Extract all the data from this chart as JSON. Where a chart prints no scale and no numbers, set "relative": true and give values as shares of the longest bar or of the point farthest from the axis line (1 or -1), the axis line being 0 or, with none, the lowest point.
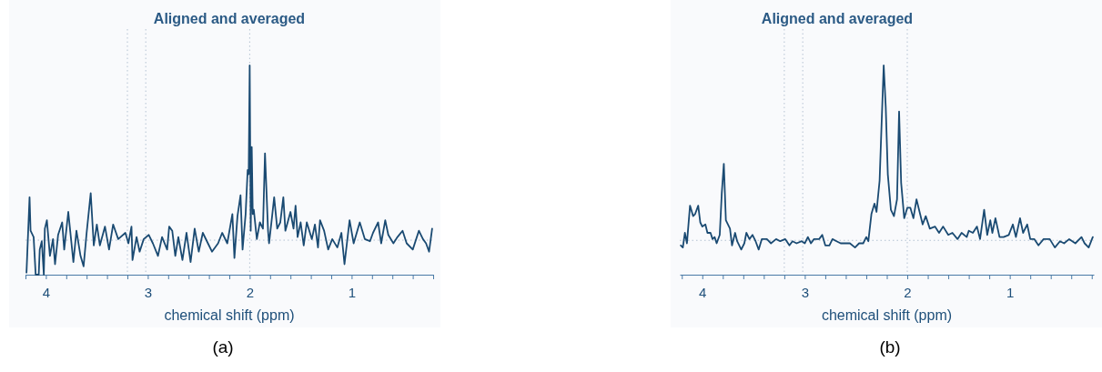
{
  "chart_data": [
    {
      "type": "line",
      "title": "Aligned and averaged",
      "xlabel": "chemical shift (ppm)",
      "relative": true,
      "xlim": [
        4.2,
        0.2
      ],
      "xticks": [
        {
          "value": 4.2,
          "label": null
        },
        4,
        {
          "value": 3.8,
          "label": null
        },
        {
          "value": 3.6,
          "label": null
        },
        {
          "value": 3.4,
          "label": null
        },
        {
          "value": 3.2,
          "label": null
        },
        3,
        {
          "value": 2.8,
          "label": null
        },
        {
          "value": 2.6,
          "label": null
        },
        {
          "value": 2.4,
          "label": null
        },
        {
          "value": 2.2,
          "label": null
        },
        2,
        {
          "value": 1.8,
          "label": null
        },
        {
          "value": 1.6,
          "label": null
        },
        {
          "value": 1.4,
          "label": null
        },
        {
          "value": 1.2,
          "label": null
        },
        1,
        {
          "value": 0.8,
          "label": null
        },
        {
          "value": 0.6,
          "label": null
        },
        {
          "value": 0.4,
          "label": null
        },
        {
          "value": 0.2,
          "label": null
        }
      ],
      "grid": false,
      "tick_labels": "x",
      "line_style": "solid",
      "marker": "none",
      "ref_lines": [
        {
          "axis": "x",
          "value": 3.2,
          "color": "#b4c2d2",
          "line_style": "dotted"
        },
        {
          "axis": "x",
          "value": 3.02,
          "color": "#b4c2d2",
          "line_style": "dotted"
        },
        {
          "axis": "x",
          "value": 2.0,
          "color": "#b4c2d2",
          "line_style": "dotted"
        },
        {
          "axis": "y",
          "value": 0.165,
          "color": "#b4c2d2",
          "line_style": "dotted"
        }
      ],
      "annotations": [
        "(a)"
      ],
      "series": [
        {
          "color": "#1a4a72",
          "x": [
            4.19,
            4.16,
            4.15,
            4.12,
            4.1,
            4.07,
            4.06,
            4.04,
            4.02,
            4.01,
            3.99,
            3.96,
            3.93,
            3.91,
            3.88,
            3.84,
            3.82,
            3.78,
            3.73,
            3.7,
            3.66,
            3.63,
            3.6,
            3.56,
            3.53,
            3.5,
            3.47,
            3.42,
            3.38,
            3.34,
            3.29,
            3.22,
            3.19,
            3.16,
            3.15,
            3.11,
            3.08,
            3.04,
            2.99,
            2.95,
            2.9,
            2.86,
            2.81,
            2.79,
            2.76,
            2.73,
            2.7,
            2.66,
            2.62,
            2.58,
            2.54,
            2.5,
            2.46,
            2.41,
            2.37,
            2.31,
            2.27,
            2.22,
            2.17,
            2.15,
            2.12,
            2.09,
            2.07,
            2.04,
            2.02,
            2.01,
            2.0,
            1.99,
            1.98,
            1.97,
            1.96,
            1.93,
            1.9,
            1.87,
            1.85,
            1.82,
            1.81,
            1.78,
            1.76,
            1.73,
            1.7,
            1.67,
            1.65,
            1.6,
            1.57,
            1.55,
            1.53,
            1.5,
            1.47,
            1.44,
            1.39,
            1.36,
            1.33,
            1.31,
            1.27,
            1.23,
            1.19,
            1.14,
            1.1,
            1.07,
            1.02,
            0.98,
            0.92,
            0.87,
            0.82,
            0.79,
            0.74,
            0.71,
            0.67,
            0.64,
            0.59,
            0.55,
            0.5,
            0.46,
            0.4,
            0.34,
            0.3,
            0.27,
            0.24,
            0.21
          ],
          "values": [
            0.01,
            0.37,
            0.21,
            0.18,
            0,
            0,
            0.12,
            0.16,
            0,
            0.22,
            0.26,
            0.09,
            0.17,
            0.05,
            0.19,
            0.25,
            0.12,
            0.3,
            0.06,
            0.21,
            0.09,
            0.04,
            0.2,
            0.39,
            0.14,
            0.24,
            0.14,
            0.23,
            0.12,
            0.24,
            0.17,
            0.2,
            0.15,
            0.23,
            0.07,
            0.18,
            0.11,
            0.17,
            0.19,
            0.15,
            0.09,
            0.18,
            0.12,
            0.23,
            0.21,
            0.09,
            0.18,
            0.07,
            0.2,
            0.06,
            0.22,
            0.11,
            0.2,
            0.15,
            0.11,
            0.15,
            0.2,
            0.15,
            0.29,
            0.08,
            0.28,
            0.38,
            0.12,
            0.29,
            0.5,
            0.48,
            1,
            0.21,
            0.61,
            0.29,
            0.31,
            0.17,
            0.25,
            0.22,
            0.58,
            0.21,
            0.15,
            0.28,
            0.37,
            0.22,
            0.25,
            0.37,
            0.21,
            0.3,
            0.22,
            0.33,
            0.18,
            0.25,
            0.14,
            0.25,
            0.17,
            0.24,
            0.13,
            0.26,
            0.21,
            0.12,
            0.17,
            0.13,
            0.2,
            0.05,
            0.26,
            0.15,
            0.25,
            0.17,
            0.16,
            0.2,
            0.25,
            0.15,
            0.26,
            0.19,
            0.15,
            0.18,
            0.21,
            0.15,
            0.12,
            0.21,
            0.17,
            0.15,
            0.11,
            0.22
          ]
        }
      ]
    },
    {
      "type": "line",
      "title": "Aligned and averaged",
      "xlabel": "chemical shift (ppm)",
      "relative": true,
      "xlim": [
        4.22,
        0.18
      ],
      "xticks": [
        {
          "value": 4.2,
          "label": null
        },
        4,
        {
          "value": 3.8,
          "label": null
        },
        {
          "value": 3.6,
          "label": null
        },
        {
          "value": 3.4,
          "label": null
        },
        {
          "value": 3.2,
          "label": null
        },
        3,
        {
          "value": 2.8,
          "label": null
        },
        {
          "value": 2.6,
          "label": null
        },
        {
          "value": 2.4,
          "label": null
        },
        {
          "value": 2.2,
          "label": null
        },
        2,
        {
          "value": 1.8,
          "label": null
        },
        {
          "value": 1.6,
          "label": null
        },
        {
          "value": 1.4,
          "label": null
        },
        {
          "value": 1.2,
          "label": null
        },
        1,
        {
          "value": 0.8,
          "label": null
        },
        {
          "value": 0.6,
          "label": null
        },
        {
          "value": 0.4,
          "label": null
        },
        {
          "value": 0.2,
          "label": null
        }
      ],
      "grid": false,
      "tick_labels": "x",
      "line_style": "solid",
      "marker": "none",
      "ref_lines": [
        {
          "axis": "x",
          "value": 3.2,
          "color": "#b4c2d2",
          "line_style": "dotted"
        },
        {
          "axis": "x",
          "value": 3.02,
          "color": "#b4c2d2",
          "line_style": "dotted"
        },
        {
          "axis": "x",
          "value": 2.0,
          "color": "#b4c2d2",
          "line_style": "dotted"
        },
        {
          "axis": "y",
          "value": 0.164,
          "color": "#b4c2d2",
          "line_style": "dotted"
        }
      ],
      "annotations": [
        "(b)"
      ],
      "series": [
        {
          "color": "#1a4a72",
          "x": [
            4.21,
            4.19,
            4.17,
            4.15,
            4.12,
            4.09,
            4.07,
            4.04,
            4.02,
            4.0,
            3.97,
            3.95,
            3.92,
            3.9,
            3.88,
            3.86,
            3.83,
            3.81,
            3.79,
            3.77,
            3.73,
            3.71,
            3.68,
            3.66,
            3.62,
            3.59,
            3.57,
            3.54,
            3.51,
            3.48,
            3.45,
            3.42,
            3.37,
            3.33,
            3.28,
            3.24,
            3.19,
            3.15,
            3.12,
            3.08,
            3.03,
            3.0,
            2.97,
            2.94,
            2.91,
            2.86,
            2.83,
            2.8,
            2.76,
            2.73,
            2.69,
            2.65,
            2.6,
            2.56,
            2.51,
            2.47,
            2.43,
            2.4,
            2.38,
            2.35,
            2.32,
            2.3,
            2.27,
            2.25,
            2.23,
            2.21,
            2.19,
            2.16,
            2.13,
            2.1,
            2.08,
            2.06,
            2.03,
            2.0,
            1.97,
            1.94,
            1.91,
            1.88,
            1.85,
            1.82,
            1.78,
            1.73,
            1.69,
            1.65,
            1.6,
            1.56,
            1.51,
            1.47,
            1.42,
            1.4,
            1.36,
            1.32,
            1.29,
            1.25,
            1.22,
            1.19,
            1.17,
            1.14,
            1.1,
            1.06,
            1.01,
            0.97,
            0.94,
            0.9,
            0.87,
            0.83,
            0.8,
            0.76,
            0.72,
            0.67,
            0.61,
            0.56,
            0.51,
            0.47,
            0.42,
            0.36,
            0.3,
            0.27,
            0.23,
            0.19
          ],
          "values": [
            0.14,
            0.13,
            0.2,
            0.15,
            0.33,
            0.28,
            0.29,
            0.33,
            0.25,
            0.23,
            0.24,
            0.2,
            0.2,
            0.17,
            0.18,
            0.15,
            0.19,
            0.39,
            0.53,
            0.26,
            0.22,
            0.14,
            0.2,
            0.16,
            0.12,
            0.15,
            0.2,
            0.17,
            0.19,
            0.16,
            0.12,
            0.17,
            0.17,
            0.15,
            0.17,
            0.16,
            0.17,
            0.14,
            0.16,
            0.15,
            0.16,
            0.15,
            0.18,
            0.15,
            0.17,
            0.17,
            0.19,
            0.14,
            0.14,
            0.17,
            0.16,
            0.15,
            0.15,
            0.15,
            0.13,
            0.15,
            0.15,
            0.18,
            0.16,
            0.29,
            0.34,
            0.3,
            0.45,
            0.73,
            1,
            0.8,
            0.48,
            0.31,
            0.28,
            0.36,
            0.78,
            0.44,
            0.27,
            0.32,
            0.32,
            0.27,
            0.36,
            0.3,
            0.24,
            0.28,
            0.22,
            0.23,
            0.2,
            0.23,
            0.19,
            0.2,
            0.17,
            0.2,
            0.18,
            0.21,
            0.2,
            0.23,
            0.17,
            0.31,
            0.19,
            0.26,
            0.2,
            0.27,
            0.18,
            0.18,
            0.19,
            0.24,
            0.18,
            0.27,
            0.2,
            0.24,
            0.17,
            0.17,
            0.14,
            0.17,
            0.17,
            0.13,
            0.16,
            0.15,
            0.17,
            0.15,
            0.18,
            0.15,
            0.13,
            0.18
          ]
        }
      ]
    }
  ]
}
